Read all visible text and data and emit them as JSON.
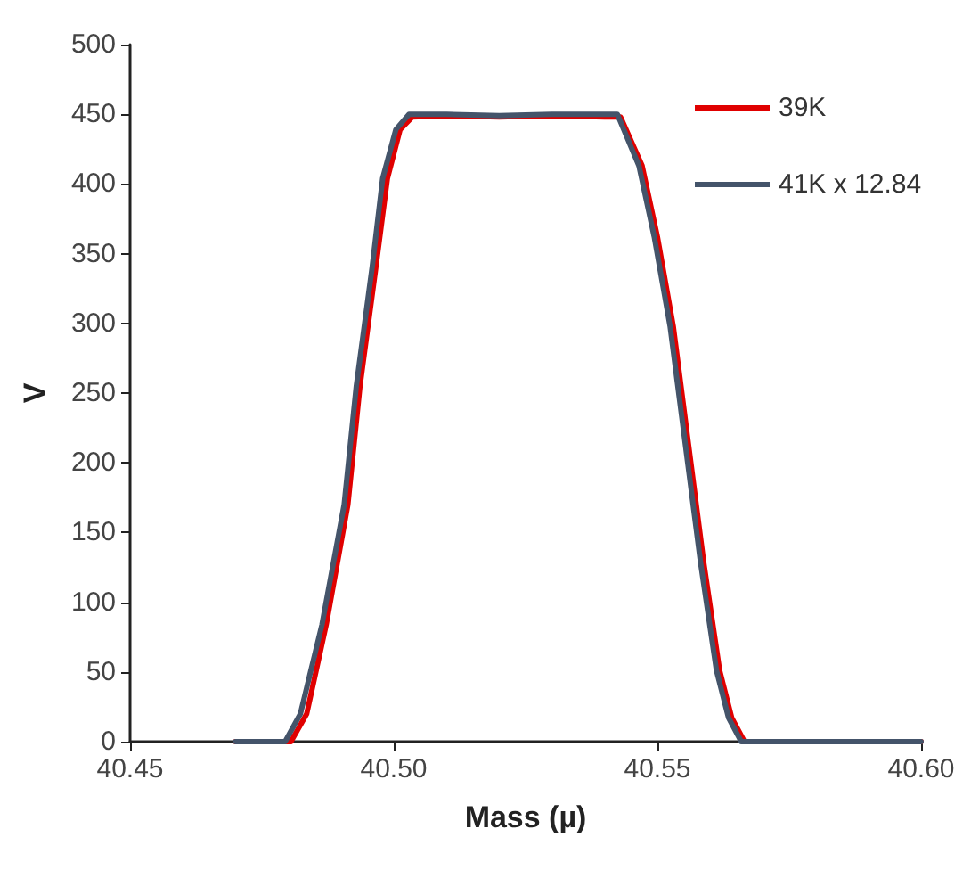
{
  "chart_data": {
    "type": "line",
    "xlabel": "Mass (µ)",
    "ylabel": "V",
    "xlim": [
      40.45,
      40.6
    ],
    "xticks": [
      {
        "value": 40.45,
        "label": "40.45"
      },
      {
        "value": 40.5,
        "label": "40.50"
      },
      {
        "value": 40.55,
        "label": "40.55"
      },
      {
        "value": 40.6,
        "label": "40.60"
      }
    ],
    "ylim": [
      0,
      500
    ],
    "yticks": [
      0,
      50,
      100,
      150,
      200,
      250,
      300,
      350,
      400,
      450,
      500
    ],
    "grid": false,
    "legend": "top right",
    "marker": "none",
    "line_style": "solid",
    "series": [
      {
        "name": "39K",
        "color": "#e00000",
        "x": [
          40.47,
          40.4805,
          40.4835,
          40.4872,
          40.4913,
          40.4936,
          40.4966,
          40.4988,
          40.5012,
          40.5035,
          40.51,
          40.52,
          40.53,
          40.54,
          40.543,
          40.5471,
          40.55,
          40.553,
          40.5559,
          40.5588,
          40.5618,
          40.5641,
          40.5665,
          40.58,
          40.6
        ],
        "values": [
          0,
          0,
          20,
          84,
          170,
          255,
          340,
          404,
          439,
          448,
          449,
          448,
          449,
          448,
          448,
          413,
          362,
          298,
          213,
          128,
          51,
          17,
          0,
          0,
          0
        ]
      },
      {
        "name": "41K x 12.84",
        "color": "#44546a",
        "x": [
          40.47,
          40.4794,
          40.4823,
          40.4864,
          40.4906,
          40.4929,
          40.4959,
          40.4979,
          40.5004,
          40.5029,
          40.51,
          40.52,
          40.53,
          40.54,
          40.5424,
          40.5465,
          40.5494,
          40.5524,
          40.5553,
          40.5582,
          40.5612,
          40.5635,
          40.5659,
          40.58,
          40.6
        ],
        "values": [
          0,
          0,
          20,
          84,
          170,
          255,
          340,
          404,
          439,
          450,
          450,
          449,
          450,
          450,
          450,
          413,
          362,
          298,
          213,
          128,
          51,
          17,
          0,
          0,
          0
        ]
      }
    ]
  }
}
